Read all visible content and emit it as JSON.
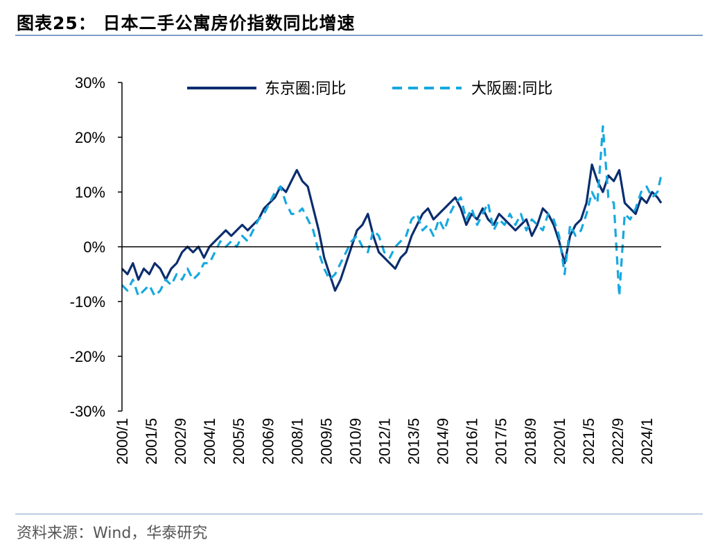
{
  "header": {
    "title": "图表25： 日本二手公寓房价指数同比增速"
  },
  "footer": {
    "source": "资料来源：Wind，华泰研究"
  },
  "colors": {
    "tokyo": "#0b2d6e",
    "osaka": "#15a8e0",
    "rule": "#7f9fc6"
  },
  "chart_data": {
    "type": "line",
    "title": "",
    "xlabel": "",
    "ylabel": "",
    "ylim": [
      -30,
      30
    ],
    "yticks": [
      -30,
      -20,
      -10,
      0,
      10,
      20,
      30
    ],
    "ytick_labels": [
      "-30%",
      "-20%",
      "-10%",
      "0%",
      "10%",
      "20%",
      "30%"
    ],
    "xlim": [
      "2000/1",
      "2024/9"
    ],
    "xtick_labels": [
      "2000/1",
      "2001/5",
      "2002/9",
      "2004/1",
      "2005/5",
      "2006/9",
      "2008/1",
      "2009/5",
      "2010/9",
      "2012/1",
      "2013/5",
      "2014/9",
      "2016/1",
      "2017/5",
      "2018/9",
      "2020/1",
      "2021/5",
      "2022/9",
      "2024/1"
    ],
    "legend": {
      "placement": "top",
      "entries": [
        "东京圈:同比",
        "大阪圈:同比"
      ]
    },
    "series": [
      {
        "name": "东京圈:同比",
        "style": "solid",
        "points": [
          [
            "2000/1",
            -4
          ],
          [
            "2000/4",
            -5
          ],
          [
            "2000/7",
            -3
          ],
          [
            "2000/10",
            -6
          ],
          [
            "2001/1",
            -4
          ],
          [
            "2001/4",
            -5
          ],
          [
            "2001/7",
            -3
          ],
          [
            "2001/10",
            -4
          ],
          [
            "2002/1",
            -6
          ],
          [
            "2002/4",
            -4
          ],
          [
            "2002/7",
            -3
          ],
          [
            "2002/10",
            -1
          ],
          [
            "2003/1",
            0
          ],
          [
            "2003/4",
            -1
          ],
          [
            "2003/7",
            0
          ],
          [
            "2003/10",
            -2
          ],
          [
            "2004/1",
            0
          ],
          [
            "2004/4",
            1
          ],
          [
            "2004/7",
            2
          ],
          [
            "2004/10",
            3
          ],
          [
            "2005/1",
            2
          ],
          [
            "2005/4",
            3
          ],
          [
            "2005/7",
            4
          ],
          [
            "2005/10",
            3
          ],
          [
            "2006/1",
            4
          ],
          [
            "2006/4",
            5
          ],
          [
            "2006/7",
            7
          ],
          [
            "2006/10",
            8
          ],
          [
            "2007/1",
            9
          ],
          [
            "2007/4",
            11
          ],
          [
            "2007/7",
            10
          ],
          [
            "2007/10",
            12
          ],
          [
            "2008/1",
            14
          ],
          [
            "2008/4",
            12
          ],
          [
            "2008/7",
            11
          ],
          [
            "2008/10",
            7
          ],
          [
            "2009/1",
            3
          ],
          [
            "2009/4",
            -2
          ],
          [
            "2009/7",
            -5
          ],
          [
            "2009/10",
            -8
          ],
          [
            "2010/1",
            -6
          ],
          [
            "2010/4",
            -3
          ],
          [
            "2010/7",
            0
          ],
          [
            "2010/10",
            3
          ],
          [
            "2011/1",
            4
          ],
          [
            "2011/4",
            6
          ],
          [
            "2011/7",
            2
          ],
          [
            "2011/10",
            -1
          ],
          [
            "2012/1",
            -2
          ],
          [
            "2012/4",
            -3
          ],
          [
            "2012/7",
            -4
          ],
          [
            "2012/10",
            -2
          ],
          [
            "2013/1",
            -1
          ],
          [
            "2013/4",
            2
          ],
          [
            "2013/7",
            4
          ],
          [
            "2013/10",
            6
          ],
          [
            "2014/1",
            7
          ],
          [
            "2014/4",
            5
          ],
          [
            "2014/7",
            6
          ],
          [
            "2014/10",
            7
          ],
          [
            "2015/1",
            8
          ],
          [
            "2015/4",
            9
          ],
          [
            "2015/7",
            7
          ],
          [
            "2015/10",
            4
          ],
          [
            "2016/1",
            6
          ],
          [
            "2016/4",
            5
          ],
          [
            "2016/7",
            7
          ],
          [
            "2016/10",
            5
          ],
          [
            "2017/1",
            4
          ],
          [
            "2017/4",
            6
          ],
          [
            "2017/7",
            5
          ],
          [
            "2017/10",
            4
          ],
          [
            "2018/1",
            3
          ],
          [
            "2018/4",
            4
          ],
          [
            "2018/7",
            5
          ],
          [
            "2018/10",
            2
          ],
          [
            "2019/1",
            4
          ],
          [
            "2019/4",
            7
          ],
          [
            "2019/7",
            6
          ],
          [
            "2019/10",
            4
          ],
          [
            "2020/1",
            1
          ],
          [
            "2020/4",
            -3
          ],
          [
            "2020/7",
            2
          ],
          [
            "2020/10",
            4
          ],
          [
            "2021/1",
            5
          ],
          [
            "2021/4",
            8
          ],
          [
            "2021/7",
            15
          ],
          [
            "2021/10",
            12
          ],
          [
            "2022/1",
            10
          ],
          [
            "2022/4",
            13
          ],
          [
            "2022/7",
            12
          ],
          [
            "2022/10",
            14
          ],
          [
            "2023/1",
            8
          ],
          [
            "2023/4",
            7
          ],
          [
            "2023/7",
            6
          ],
          [
            "2023/10",
            9
          ],
          [
            "2024/1",
            8
          ],
          [
            "2024/4",
            10
          ],
          [
            "2024/7",
            9
          ],
          [
            "2024/9",
            8
          ]
        ]
      },
      {
        "name": "大阪圈:同比",
        "style": "dashed",
        "points": [
          [
            "2000/1",
            -7
          ],
          [
            "2000/4",
            -8
          ],
          [
            "2000/7",
            -6
          ],
          [
            "2000/10",
            -9
          ],
          [
            "2001/1",
            -8
          ],
          [
            "2001/4",
            -7
          ],
          [
            "2001/7",
            -9
          ],
          [
            "2001/10",
            -8
          ],
          [
            "2002/1",
            -6
          ],
          [
            "2002/4",
            -7
          ],
          [
            "2002/7",
            -5
          ],
          [
            "2002/10",
            -6
          ],
          [
            "2003/1",
            -4
          ],
          [
            "2003/4",
            -6
          ],
          [
            "2003/7",
            -5
          ],
          [
            "2003/10",
            -3
          ],
          [
            "2004/1",
            -3
          ],
          [
            "2004/4",
            -1
          ],
          [
            "2004/7",
            1
          ],
          [
            "2004/10",
            0
          ],
          [
            "2005/1",
            1
          ],
          [
            "2005/4",
            0
          ],
          [
            "2005/7",
            2
          ],
          [
            "2005/10",
            1
          ],
          [
            "2006/1",
            3
          ],
          [
            "2006/4",
            5
          ],
          [
            "2006/7",
            6
          ],
          [
            "2006/10",
            8
          ],
          [
            "2007/1",
            10
          ],
          [
            "2007/4",
            11
          ],
          [
            "2007/7",
            8
          ],
          [
            "2007/10",
            6
          ],
          [
            "2008/1",
            6
          ],
          [
            "2008/4",
            7
          ],
          [
            "2008/7",
            5
          ],
          [
            "2008/10",
            3
          ],
          [
            "2009/1",
            -1
          ],
          [
            "2009/4",
            -4
          ],
          [
            "2009/7",
            -6
          ],
          [
            "2009/10",
            -5
          ],
          [
            "2010/1",
            -3
          ],
          [
            "2010/4",
            -1
          ],
          [
            "2010/7",
            1
          ],
          [
            "2010/10",
            2
          ],
          [
            "2011/1",
            0
          ],
          [
            "2011/4",
            -1
          ],
          [
            "2011/7",
            3
          ],
          [
            "2011/10",
            2
          ],
          [
            "2012/1",
            -1
          ],
          [
            "2012/4",
            -2
          ],
          [
            "2012/7",
            0
          ],
          [
            "2012/10",
            1
          ],
          [
            "2013/1",
            2
          ],
          [
            "2013/4",
            5
          ],
          [
            "2013/7",
            6
          ],
          [
            "2013/10",
            3
          ],
          [
            "2014/1",
            4
          ],
          [
            "2014/4",
            2
          ],
          [
            "2014/7",
            5
          ],
          [
            "2014/10",
            3
          ],
          [
            "2015/1",
            6
          ],
          [
            "2015/4",
            8
          ],
          [
            "2015/7",
            9
          ],
          [
            "2015/10",
            5
          ],
          [
            "2016/1",
            7
          ],
          [
            "2016/4",
            4
          ],
          [
            "2016/7",
            6
          ],
          [
            "2016/10",
            8
          ],
          [
            "2017/1",
            3
          ],
          [
            "2017/4",
            5
          ],
          [
            "2017/7",
            4
          ],
          [
            "2017/10",
            6
          ],
          [
            "2018/1",
            4
          ],
          [
            "2018/4",
            6
          ],
          [
            "2018/7",
            3
          ],
          [
            "2018/10",
            5
          ],
          [
            "2019/1",
            4
          ],
          [
            "2019/4",
            3
          ],
          [
            "2019/7",
            6
          ],
          [
            "2019/10",
            5
          ],
          [
            "2020/1",
            2
          ],
          [
            "2020/4",
            -5
          ],
          [
            "2020/7",
            4
          ],
          [
            "2020/10",
            2
          ],
          [
            "2021/1",
            3
          ],
          [
            "2021/4",
            6
          ],
          [
            "2021/7",
            10
          ],
          [
            "2021/10",
            8
          ],
          [
            "2022/1",
            22
          ],
          [
            "2022/4",
            9
          ],
          [
            "2022/7",
            8
          ],
          [
            "2022/10",
            -9
          ],
          [
            "2023/1",
            6
          ],
          [
            "2023/4",
            5
          ],
          [
            "2023/7",
            7
          ],
          [
            "2023/10",
            10
          ],
          [
            "2024/1",
            11
          ],
          [
            "2024/4",
            9
          ],
          [
            "2024/7",
            10
          ],
          [
            "2024/9",
            13
          ]
        ]
      }
    ]
  }
}
